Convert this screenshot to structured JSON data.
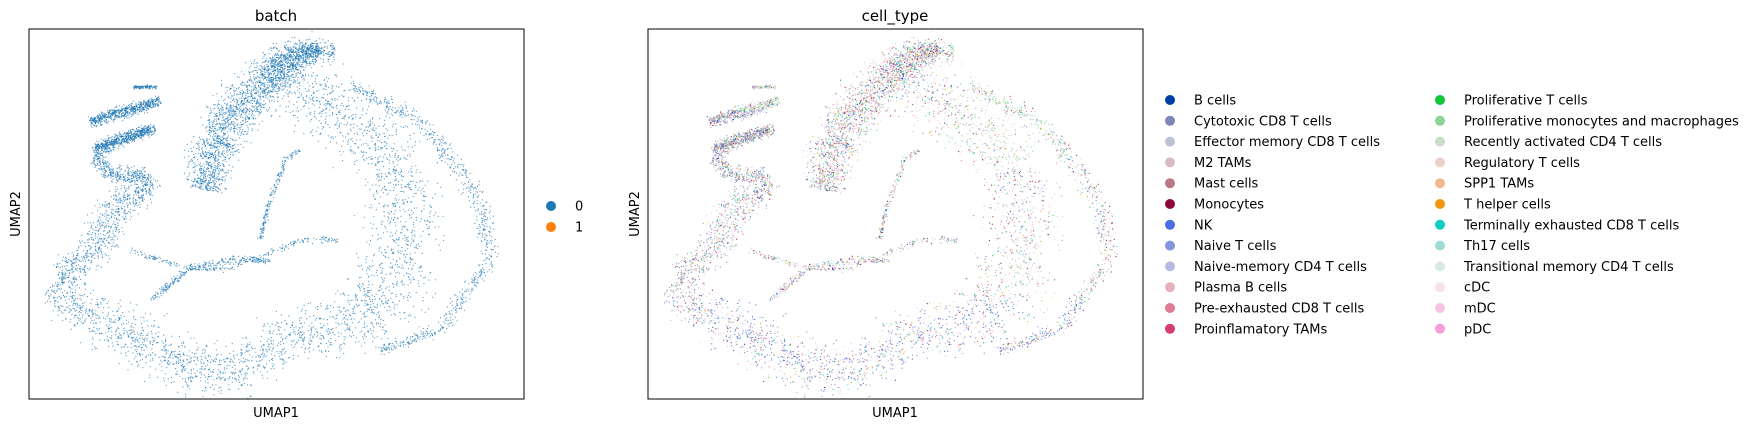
{
  "chart_data": [
    {
      "type": "scatter",
      "title": "batch",
      "xlabel": "UMAP1",
      "ylabel": "UMAP2",
      "grid": false,
      "ticks": false,
      "legend_placement": "right",
      "series": [
        {
          "name": "0",
          "color": "#1f77b4"
        },
        {
          "name": "1",
          "color": "#ff7f0e"
        }
      ]
    },
    {
      "type": "scatter",
      "title": "cell_type",
      "xlabel": "UMAP1",
      "ylabel": "UMAP2",
      "grid": false,
      "ticks": false,
      "legend_placement": "right",
      "series": [
        {
          "name": "B cells",
          "color": "#023fa5"
        },
        {
          "name": "Cytotoxic CD8 T cells",
          "color": "#7d87b9"
        },
        {
          "name": "Effector memory CD8 T cells",
          "color": "#bec1d4"
        },
        {
          "name": "M2 TAMs",
          "color": "#d6bcc0"
        },
        {
          "name": "Mast cells",
          "color": "#bb7784"
        },
        {
          "name": "Monocytes",
          "color": "#8e063b"
        },
        {
          "name": "NK",
          "color": "#4a6fe3"
        },
        {
          "name": "Naive T cells",
          "color": "#8595e1"
        },
        {
          "name": "Naive-memory CD4 T cells",
          "color": "#b5bbe3"
        },
        {
          "name": "Plasma B cells",
          "color": "#e6afb9"
        },
        {
          "name": "Pre-exhausted CD8 T cells",
          "color": "#e07b91"
        },
        {
          "name": "Proinflamatory TAMs",
          "color": "#d33f6a"
        },
        {
          "name": "Proliferative T cells",
          "color": "#11c638"
        },
        {
          "name": "Proliferative monocytes and macrophages",
          "color": "#8dd593"
        },
        {
          "name": "Recently activated CD4 T cells",
          "color": "#c6dec7"
        },
        {
          "name": "Regulatory T cells",
          "color": "#ead3c6"
        },
        {
          "name": "SPP1 TAMs",
          "color": "#f0b98d"
        },
        {
          "name": "T helper cells",
          "color": "#ef9708"
        },
        {
          "name": "Terminally exhausted CD8 T cells",
          "color": "#0fcfc0"
        },
        {
          "name": "Th17 cells",
          "color": "#9cded6"
        },
        {
          "name": "Transitional memory CD4 T cells",
          "color": "#d5eae7"
        },
        {
          "name": "cDC",
          "color": "#f3e1eb"
        },
        {
          "name": "mDC",
          "color": "#f6c4e1"
        },
        {
          "name": "pDC",
          "color": "#f79cd4"
        }
      ]
    }
  ]
}
